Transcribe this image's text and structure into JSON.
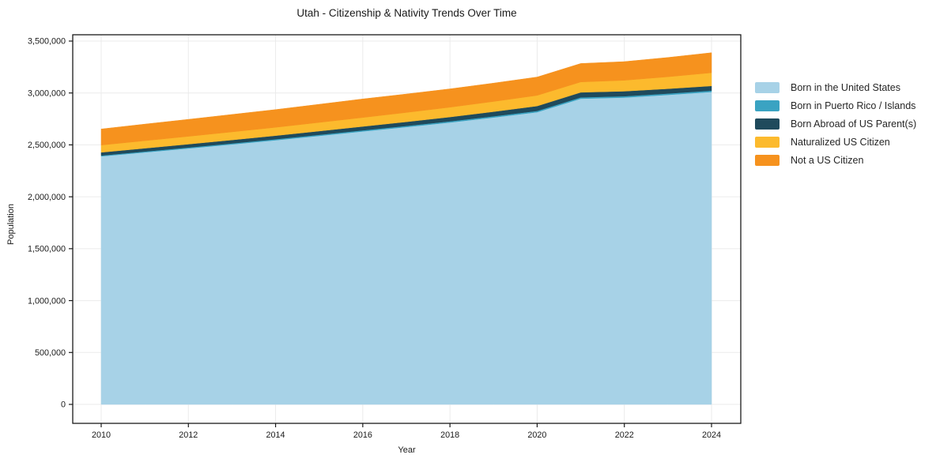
{
  "chart_data": {
    "type": "area",
    "stacked": true,
    "title": "Utah - Citizenship & Nativity Trends Over Time",
    "xlabel": "Year",
    "ylabel": "Population",
    "grid": true,
    "legend_position": "right-outside",
    "x": [
      2010,
      2011,
      2012,
      2013,
      2014,
      2015,
      2016,
      2017,
      2018,
      2019,
      2020,
      2021,
      2022,
      2023,
      2024
    ],
    "xticks": [
      2010,
      2012,
      2014,
      2016,
      2018,
      2020,
      2022,
      2024
    ],
    "xtick_labels": [
      "2010",
      "2012",
      "2014",
      "2016",
      "2018",
      "2020",
      "2022",
      "2024"
    ],
    "yticks": [
      0,
      500000,
      1000000,
      1500000,
      2000000,
      2500000,
      3000000,
      3500000
    ],
    "ytick_labels": [
      "0",
      "500,000",
      "1,000,000",
      "1,500,000",
      "2,000,000",
      "2,500,000",
      "3,000,000",
      "3,500,000"
    ],
    "ylim": [
      0,
      3500000
    ],
    "xlim": [
      2010,
      2024
    ],
    "series": [
      {
        "name": "Born in the United States",
        "color": "#a7d2e7",
        "values": [
          2390000,
          2428000,
          2466000,
          2505000,
          2545000,
          2587000,
          2630000,
          2672000,
          2716000,
          2764000,
          2815000,
          2945000,
          2956000,
          2982000,
          3010000
        ]
      },
      {
        "name": "Born in Puerto Rico / Islands",
        "color": "#3aa3c2",
        "values": [
          8000,
          8500,
          9000,
          9500,
          10000,
          10500,
          10500,
          11000,
          11500,
          12000,
          12500,
          13000,
          13000,
          13000,
          13000
        ]
      },
      {
        "name": "Born Abroad of US Parent(s)",
        "color": "#1f4a5c",
        "values": [
          30000,
          31000,
          32000,
          33000,
          34000,
          35500,
          37000,
          39000,
          41000,
          44000,
          47000,
          48000,
          48000,
          46000,
          45000
        ]
      },
      {
        "name": "Naturalized US Citizen",
        "color": "#fcba2d",
        "values": [
          70000,
          72500,
          75000,
          77500,
          80000,
          83000,
          86000,
          90000,
          94000,
          98000,
          102000,
          100000,
          105000,
          115000,
          127000
        ]
      },
      {
        "name": "Not a US Citizen",
        "color": "#f6921e",
        "values": [
          155000,
          160000,
          164000,
          168000,
          171000,
          175000,
          179000,
          178000,
          177000,
          177000,
          177000,
          178000,
          180000,
          186000,
          193000
        ]
      }
    ],
    "axis_color": "#1a1a1a",
    "grid_color": "#ebebeb",
    "background_color": "#ffffff"
  }
}
